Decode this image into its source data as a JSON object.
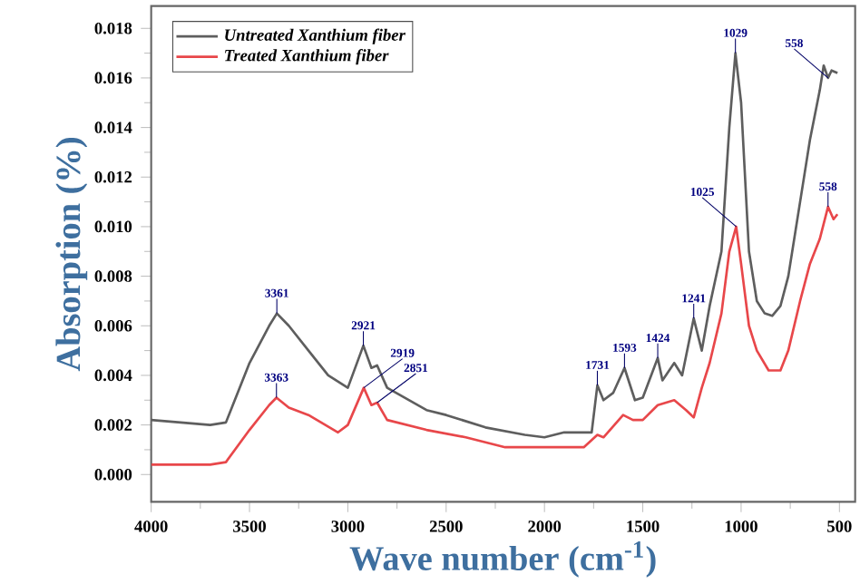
{
  "chart_data": {
    "type": "line",
    "xlabel": "Wave number (cm$^{-1}$)",
    "ylabel": "Absorption (%)",
    "xlim": [
      4000,
      420
    ],
    "ylim": [
      -0.0011,
      0.0189
    ],
    "xticks": [
      4000,
      3500,
      3000,
      2500,
      2000,
      1500,
      1000,
      500
    ],
    "yticks": [
      {
        "value": 0,
        "label": "0.000"
      },
      {
        "value": 0.002,
        "label": "0.002"
      },
      {
        "value": 0.004,
        "label": "0.004"
      },
      {
        "value": 0.006,
        "label": "0.006"
      },
      {
        "value": 0.008,
        "label": "0.008"
      },
      {
        "value": 0.01,
        "label": "0.010"
      },
      {
        "value": 0.012,
        "label": "0.012"
      },
      {
        "value": 0.014,
        "label": "0.014"
      },
      {
        "value": 0.016,
        "label": "0.016"
      },
      {
        "value": 0.018,
        "label": "0.018"
      }
    ],
    "legend": "top left",
    "grid": false,
    "marker": "none",
    "line_style": "solid",
    "series": [
      {
        "name": "Untreated Xanthium fiber",
        "color": "#5e5e5e",
        "x": [
          4000,
          3700,
          3620,
          3500,
          3400,
          3361,
          3300,
          3200,
          3100,
          3000,
          2921,
          2880,
          2851,
          2800,
          2600,
          2500,
          2300,
          2100,
          2000,
          1900,
          1760,
          1731,
          1700,
          1650,
          1593,
          1540,
          1500,
          1424,
          1400,
          1340,
          1300,
          1241,
          1200,
          1160,
          1100,
          1060,
          1029,
          1000,
          960,
          920,
          880,
          842,
          800,
          760,
          700,
          650,
          600,
          580,
          558,
          540,
          510
        ],
        "values": [
          0.0022,
          0.002,
          0.0021,
          0.0045,
          0.006,
          0.0065,
          0.006,
          0.005,
          0.004,
          0.0035,
          0.0052,
          0.0043,
          0.0044,
          0.0035,
          0.0026,
          0.0024,
          0.0019,
          0.0016,
          0.0015,
          0.0017,
          0.0017,
          0.0036,
          0.003,
          0.0033,
          0.0043,
          0.003,
          0.0031,
          0.0047,
          0.0038,
          0.0045,
          0.004,
          0.0063,
          0.005,
          0.0068,
          0.009,
          0.014,
          0.017,
          0.015,
          0.009,
          0.007,
          0.0065,
          0.0064,
          0.0068,
          0.008,
          0.011,
          0.0135,
          0.0155,
          0.0165,
          0.016,
          0.0163,
          0.0162
        ]
      },
      {
        "name": "Treated Xanthium fiber",
        "color": "#e8474a",
        "x": [
          4000,
          3700,
          3620,
          3500,
          3400,
          3363,
          3300,
          3200,
          3050,
          3000,
          2919,
          2880,
          2851,
          2800,
          2600,
          2400,
          2200,
          2000,
          1800,
          1731,
          1700,
          1600,
          1550,
          1500,
          1424,
          1340,
          1280,
          1241,
          1200,
          1160,
          1100,
          1060,
          1025,
          1000,
          960,
          920,
          860,
          800,
          760,
          700,
          650,
          600,
          558,
          530,
          510
        ],
        "values": [
          0.0004,
          0.0004,
          0.0005,
          0.0018,
          0.0028,
          0.0031,
          0.0027,
          0.0024,
          0.0017,
          0.002,
          0.0035,
          0.0028,
          0.0029,
          0.0022,
          0.0018,
          0.0015,
          0.0011,
          0.0011,
          0.0011,
          0.0016,
          0.0015,
          0.0024,
          0.0022,
          0.0022,
          0.0028,
          0.003,
          0.0026,
          0.0023,
          0.0035,
          0.0045,
          0.0065,
          0.009,
          0.01,
          0.0085,
          0.006,
          0.005,
          0.0042,
          0.0042,
          0.005,
          0.007,
          0.0085,
          0.0095,
          0.0108,
          0.0103,
          0.0105
        ]
      }
    ],
    "annotations": [
      {
        "text": "3361",
        "x": 3361,
        "y": 0.0065
      },
      {
        "text": "3363",
        "x": 3363,
        "y": 0.0031
      },
      {
        "text": "2921",
        "x": 2921,
        "y": 0.0052
      },
      {
        "text": "2919",
        "x": 2919,
        "y": 0.0035
      },
      {
        "text": "2851",
        "x": 2851,
        "y": 0.0029
      },
      {
        "text": "1731",
        "x": 1731,
        "y": 0.0036
      },
      {
        "text": "1593",
        "x": 1593,
        "y": 0.0043
      },
      {
        "text": "1424",
        "x": 1424,
        "y": 0.0047
      },
      {
        "text": "1241",
        "x": 1241,
        "y": 0.0063
      },
      {
        "text": "1029",
        "x": 1029,
        "y": 0.017
      },
      {
        "text": "1025",
        "x": 1025,
        "y": 0.01
      },
      {
        "text": "558",
        "x": 558,
        "y": 0.016
      },
      {
        "text": "558",
        "x": 558,
        "y": 0.0108
      }
    ]
  }
}
